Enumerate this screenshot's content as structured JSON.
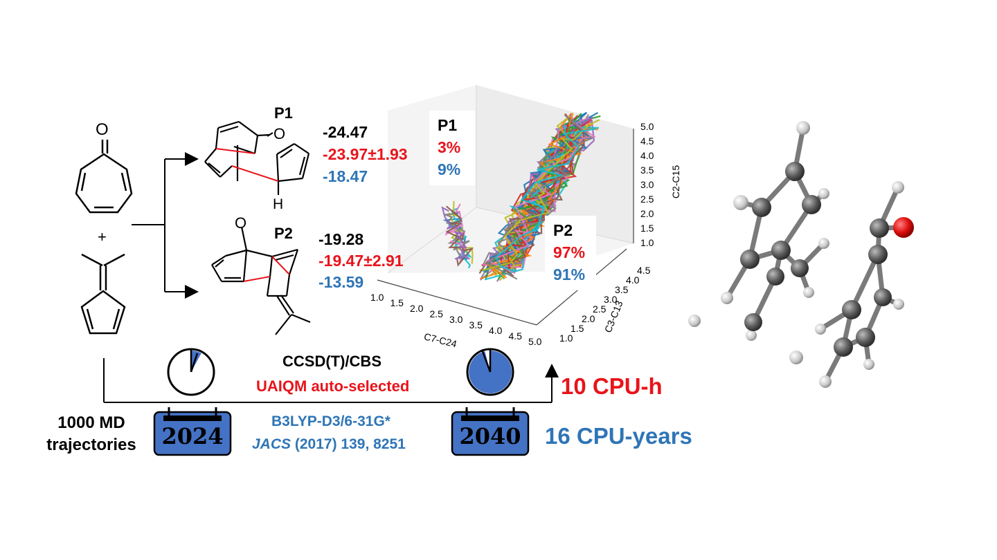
{
  "colors": {
    "black": "#000000",
    "red": "#e8141b",
    "blue": "#2e75b6",
    "calendar_fill": "#4472c4",
    "atom_gray": "#6b6b6b",
    "oxygen_red": "#e01010"
  },
  "reactants": {
    "oxygen_label": "O",
    "plus": "+"
  },
  "products": {
    "p1": {
      "label": "P1",
      "oxygen_label": "O",
      "hydrogen_label": "H",
      "energy_ccsd": "-24.47",
      "energy_uaiqm": "-23.97±1.93",
      "energy_b3lyp": "-18.47"
    },
    "p2": {
      "label": "P2",
      "oxygen_label": "O",
      "energy_ccsd": "-19.28",
      "energy_uaiqm": "-19.47±2.91",
      "energy_b3lyp": "-13.59"
    }
  },
  "trajectory_plot": {
    "p1_label": "P1",
    "p1_uaiqm_pct": "3%",
    "p1_b3lyp_pct": "9%",
    "p2_label": "P2",
    "p2_uaiqm_pct": "97%",
    "p2_b3lyp_pct": "91%",
    "x_axis_label": "C7-C24",
    "y_axis_label": "C3-C13",
    "z_axis_label": "C2-C15",
    "x_ticks": [
      "1.0",
      "1.5",
      "2.0",
      "2.5",
      "3.0",
      "3.5",
      "4.0",
      "4.5",
      "5.0"
    ],
    "y_ticks": [
      "1.0",
      "1.5",
      "2.0",
      "2.5",
      "3.0",
      "3.5",
      "4.0",
      "4.5"
    ],
    "z_ticks": [
      "1.0",
      "1.5",
      "2.0",
      "2.5",
      "3.0",
      "3.5",
      "4.0",
      "4.5",
      "5.0"
    ]
  },
  "methods": {
    "ccsd_label": "CCSD(T)/CBS",
    "uaiqm_label": "UAIQM auto-selected",
    "b3lyp_label": "B3LYP-D3/6-31G*",
    "ref_journal": "JACS",
    "ref_rest": " (2017) 139, 8251"
  },
  "timeline": {
    "md_label_line1": "1000 MD",
    "md_label_line2": "trajectories",
    "year_now": "2024",
    "year_future": "2040",
    "uaiqm_cost": "10 CPU-h",
    "b3lyp_cost": "16 CPU-years",
    "clock_now_fraction": 0.08,
    "clock_future_fraction": 0.96
  }
}
